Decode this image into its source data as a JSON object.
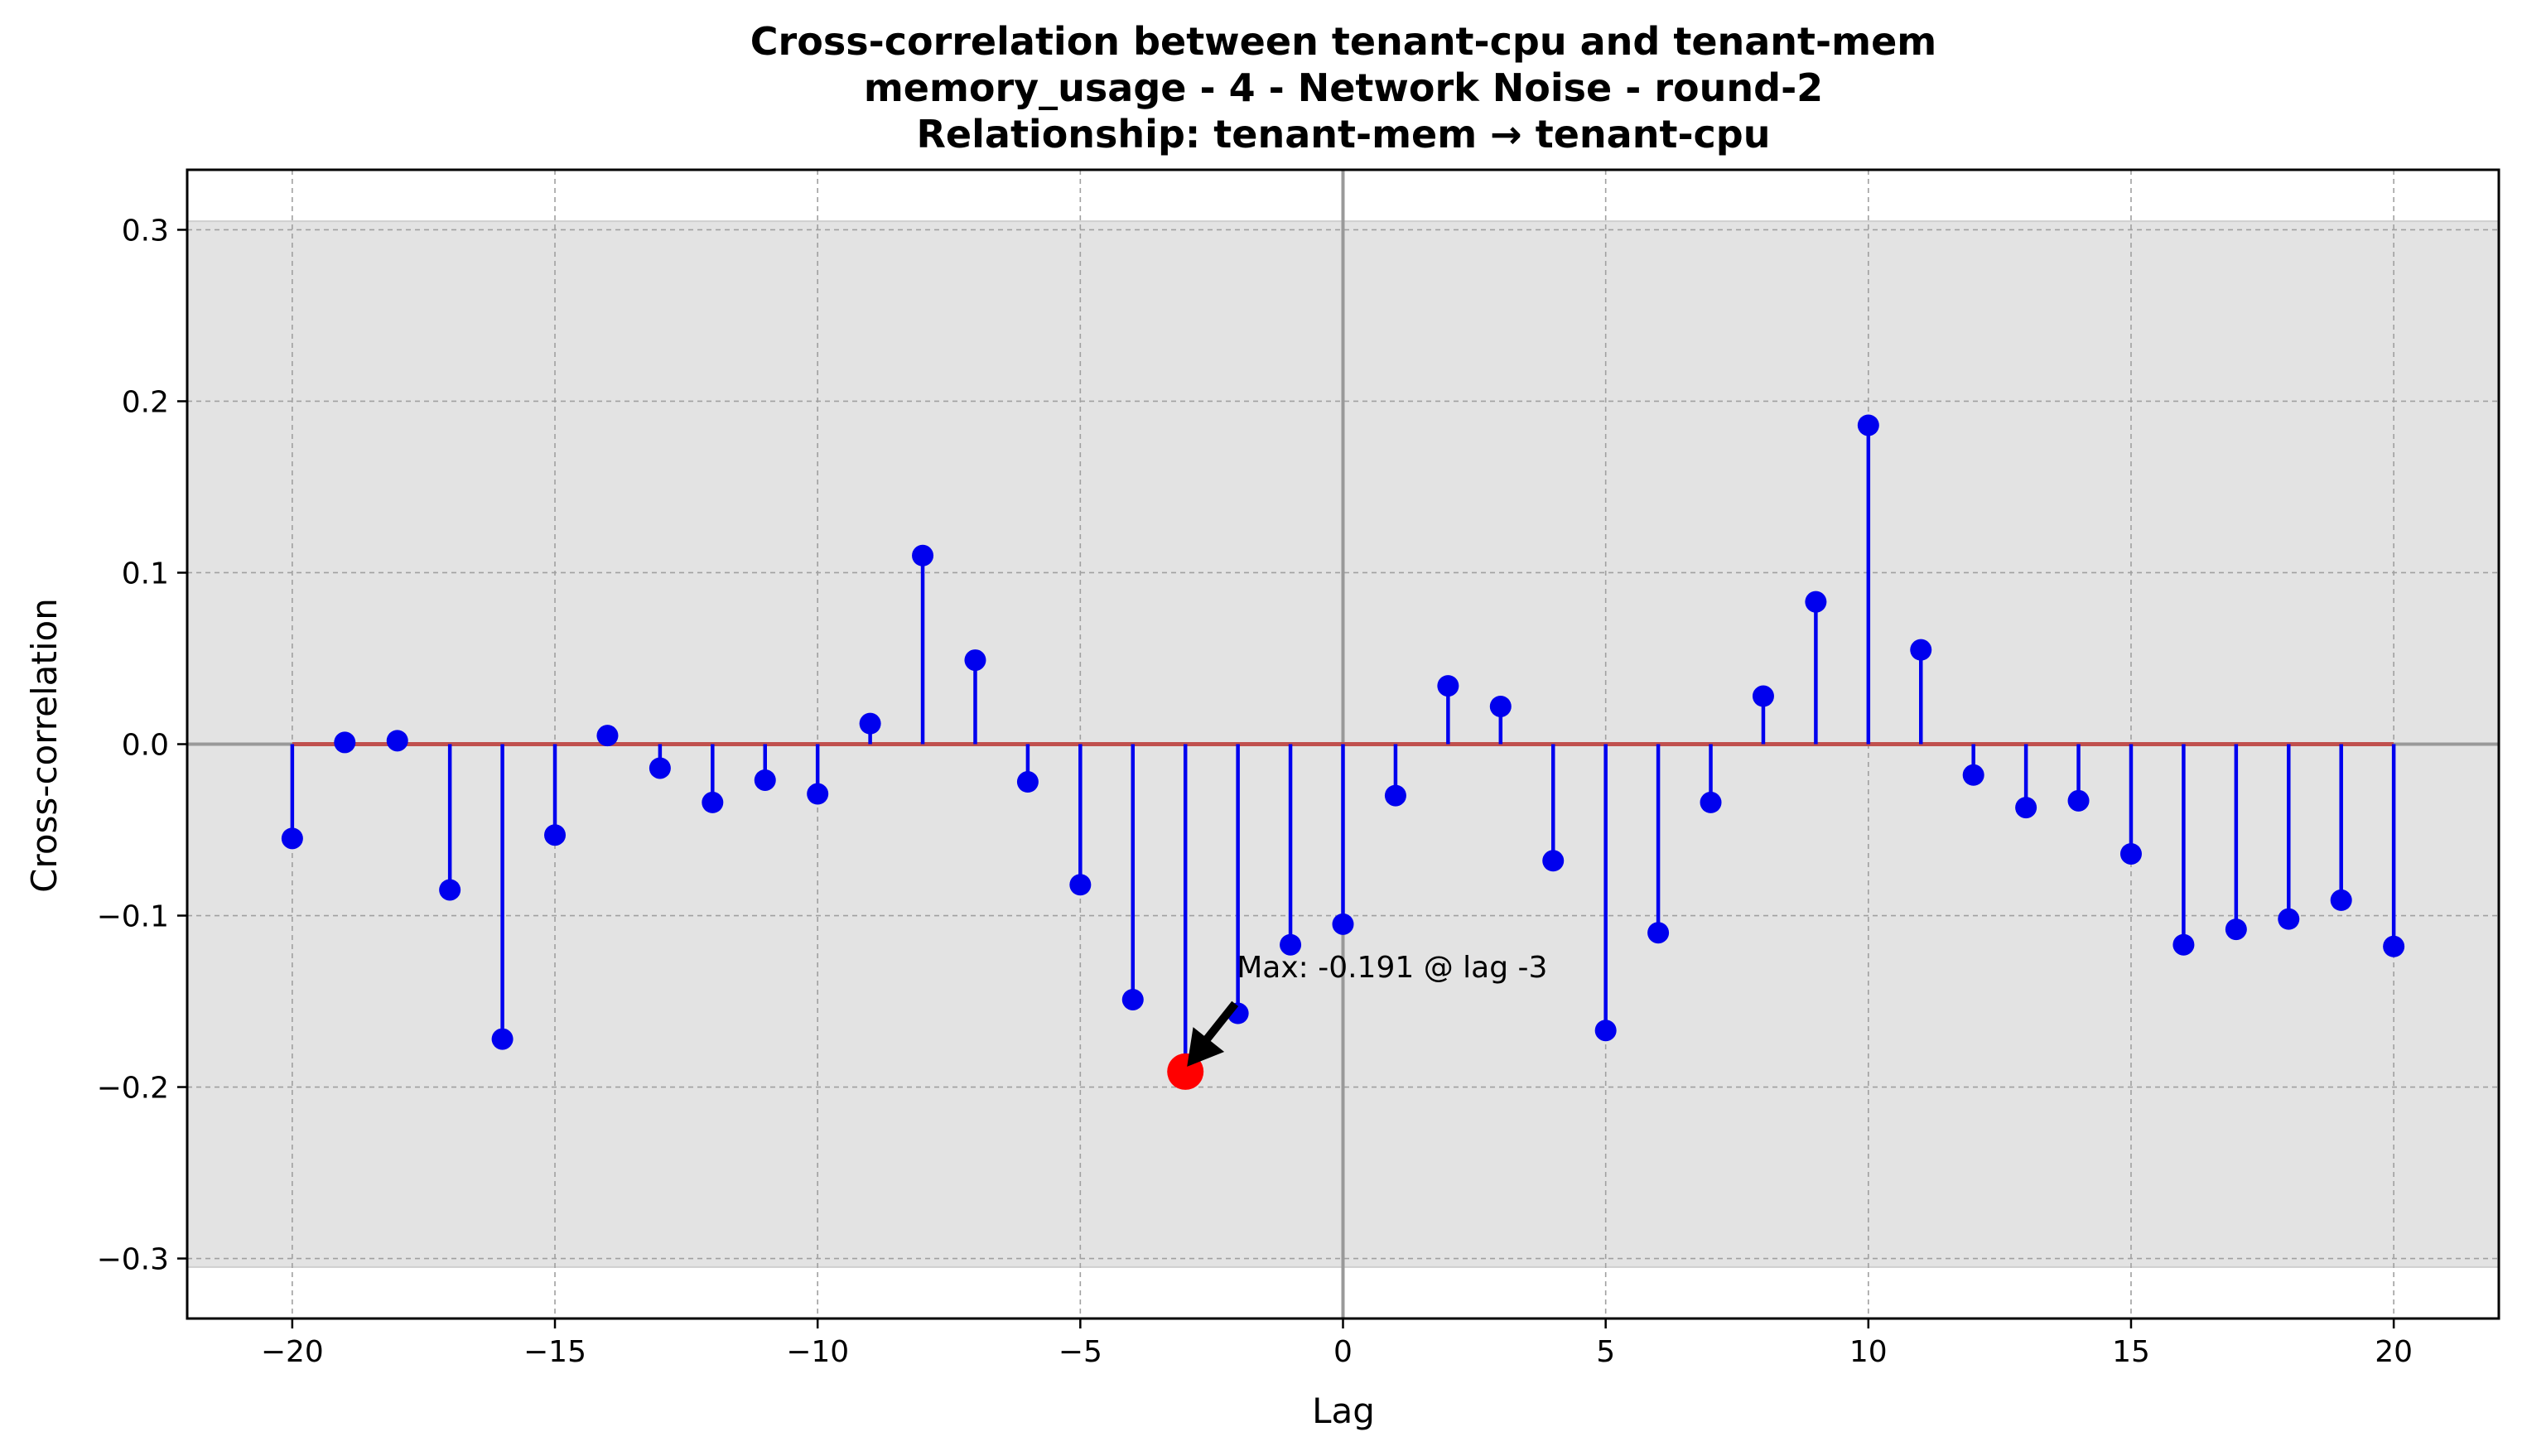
{
  "chart_data": {
    "type": "stem",
    "title_lines": [
      "Cross-correlation between tenant-cpu and tenant-mem",
      "memory_usage - 4 - Network Noise - round-2",
      "Relationship: tenant-mem → tenant-cpu"
    ],
    "xlabel": "Lag",
    "ylabel": "Cross-correlation",
    "xlim": [
      -22,
      22
    ],
    "ylim": [
      -0.335,
      0.335
    ],
    "xticks": [
      -20,
      -15,
      -10,
      -5,
      0,
      5,
      10,
      15,
      20
    ],
    "xtick_labels": [
      "−20",
      "−15",
      "−10",
      "−5",
      "0",
      "5",
      "10",
      "15",
      "20"
    ],
    "yticks": [
      -0.3,
      -0.2,
      -0.1,
      0.0,
      0.1,
      0.2,
      0.3
    ],
    "ytick_labels": [
      "−0.3",
      "−0.2",
      "−0.1",
      "0.0",
      "0.1",
      "0.2",
      "0.3"
    ],
    "grid": true,
    "confidence_band": [
      -0.305,
      0.305
    ],
    "x": [
      -20,
      -19,
      -18,
      -17,
      -16,
      -15,
      -14,
      -13,
      -12,
      -11,
      -10,
      -9,
      -8,
      -7,
      -6,
      -5,
      -4,
      -3,
      -2,
      -1,
      0,
      1,
      2,
      3,
      4,
      5,
      6,
      7,
      8,
      9,
      10,
      11,
      12,
      13,
      14,
      15,
      16,
      17,
      18,
      19,
      20
    ],
    "values": [
      -0.055,
      0.001,
      0.002,
      -0.085,
      -0.172,
      -0.053,
      0.005,
      -0.014,
      -0.034,
      -0.021,
      -0.029,
      0.012,
      0.11,
      0.049,
      -0.022,
      -0.082,
      -0.149,
      -0.191,
      -0.157,
      -0.117,
      -0.105,
      -0.03,
      0.034,
      0.022,
      -0.068,
      -0.167,
      -0.11,
      -0.034,
      0.028,
      0.083,
      0.186,
      0.055,
      -0.018,
      -0.037,
      -0.033,
      -0.064,
      -0.117,
      -0.108,
      -0.102,
      -0.091,
      -0.118
    ],
    "highlight": {
      "lag": -3,
      "value": -0.191,
      "label": "Max: -0.191 @ lag -3"
    },
    "colors": {
      "stem": "#0000ee",
      "marker": "#0000ee",
      "baseline": "#c0504d",
      "highlight": "#ff0000",
      "band": "#e3e3e3",
      "zero_line": "#999999",
      "grid": "#a0a0a0"
    }
  }
}
